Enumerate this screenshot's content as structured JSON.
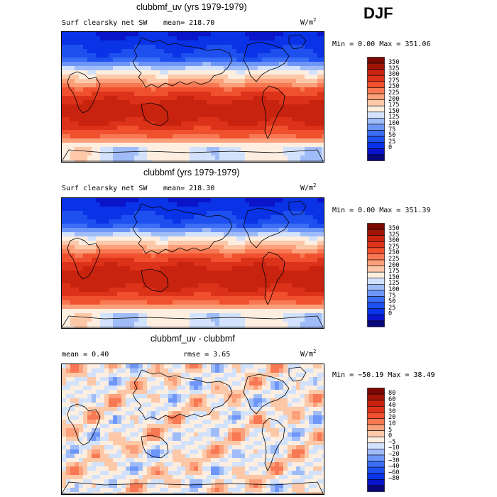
{
  "season": "DJF",
  "colors": {
    "abs": [
      "#08087a",
      "#0a14c8",
      "#0a32e6",
      "#1e50f0",
      "#3c6ef5",
      "#6e96f8",
      "#a0bcf8",
      "#d2e2fc",
      "#fdeee0",
      "#fcc8a8",
      "#fba07a",
      "#f77852",
      "#f0502e",
      "#dc321a",
      "#c8230f",
      "#a01405",
      "#7a0a02"
    ],
    "diff": [
      "#08087a",
      "#0a14c8",
      "#0a32e6",
      "#1e50f0",
      "#3c6ef5",
      "#6e96f8",
      "#a0bcf8",
      "#d2e2fc",
      "#fdeee0",
      "#fcc8a8",
      "#fba07a",
      "#f77852",
      "#f0502e",
      "#dc321a",
      "#c8230f",
      "#a01405",
      "#7a0a02"
    ]
  },
  "chart_data": [
    {
      "type": "heatmap",
      "title": "clubbmf_uv (yrs 1979-1979)",
      "variable": "Surf clearsky net SW",
      "mean_label": "mean= 218.70",
      "units": "W/m",
      "units_sup": "2",
      "min_max": "Min =    0.00 Max = 351.06",
      "colorbar_levels": [
        "350",
        "325",
        "300",
        "275",
        "250",
        "225",
        "200",
        "175",
        "150",
        "125",
        "100",
        "75",
        "50",
        "25",
        "0"
      ]
    },
    {
      "type": "heatmap",
      "title": "clubbmf (yrs 1979-1979)",
      "variable": "Surf clearsky net SW",
      "mean_label": "mean= 218.30",
      "units": "W/m",
      "units_sup": "2",
      "min_max": "Min =    0.00 Max = 351.39",
      "colorbar_levels": [
        "350",
        "325",
        "300",
        "275",
        "250",
        "225",
        "200",
        "175",
        "150",
        "125",
        "100",
        "75",
        "50",
        "25",
        "0"
      ]
    },
    {
      "type": "heatmap",
      "title": "clubbmf_uv - clubbmf",
      "mean_label": "mean =    0.40",
      "rmse_label": "rmse =    3.65",
      "units": "W/m",
      "units_sup": "2",
      "min_max": "Min = −50.19 Max =   38.49",
      "colorbar_levels": [
        "80",
        "60",
        "40",
        "30",
        "20",
        "10",
        "5",
        "0",
        "−5",
        "−10",
        "−20",
        "−30",
        "−40",
        "−60",
        "−80"
      ]
    }
  ]
}
